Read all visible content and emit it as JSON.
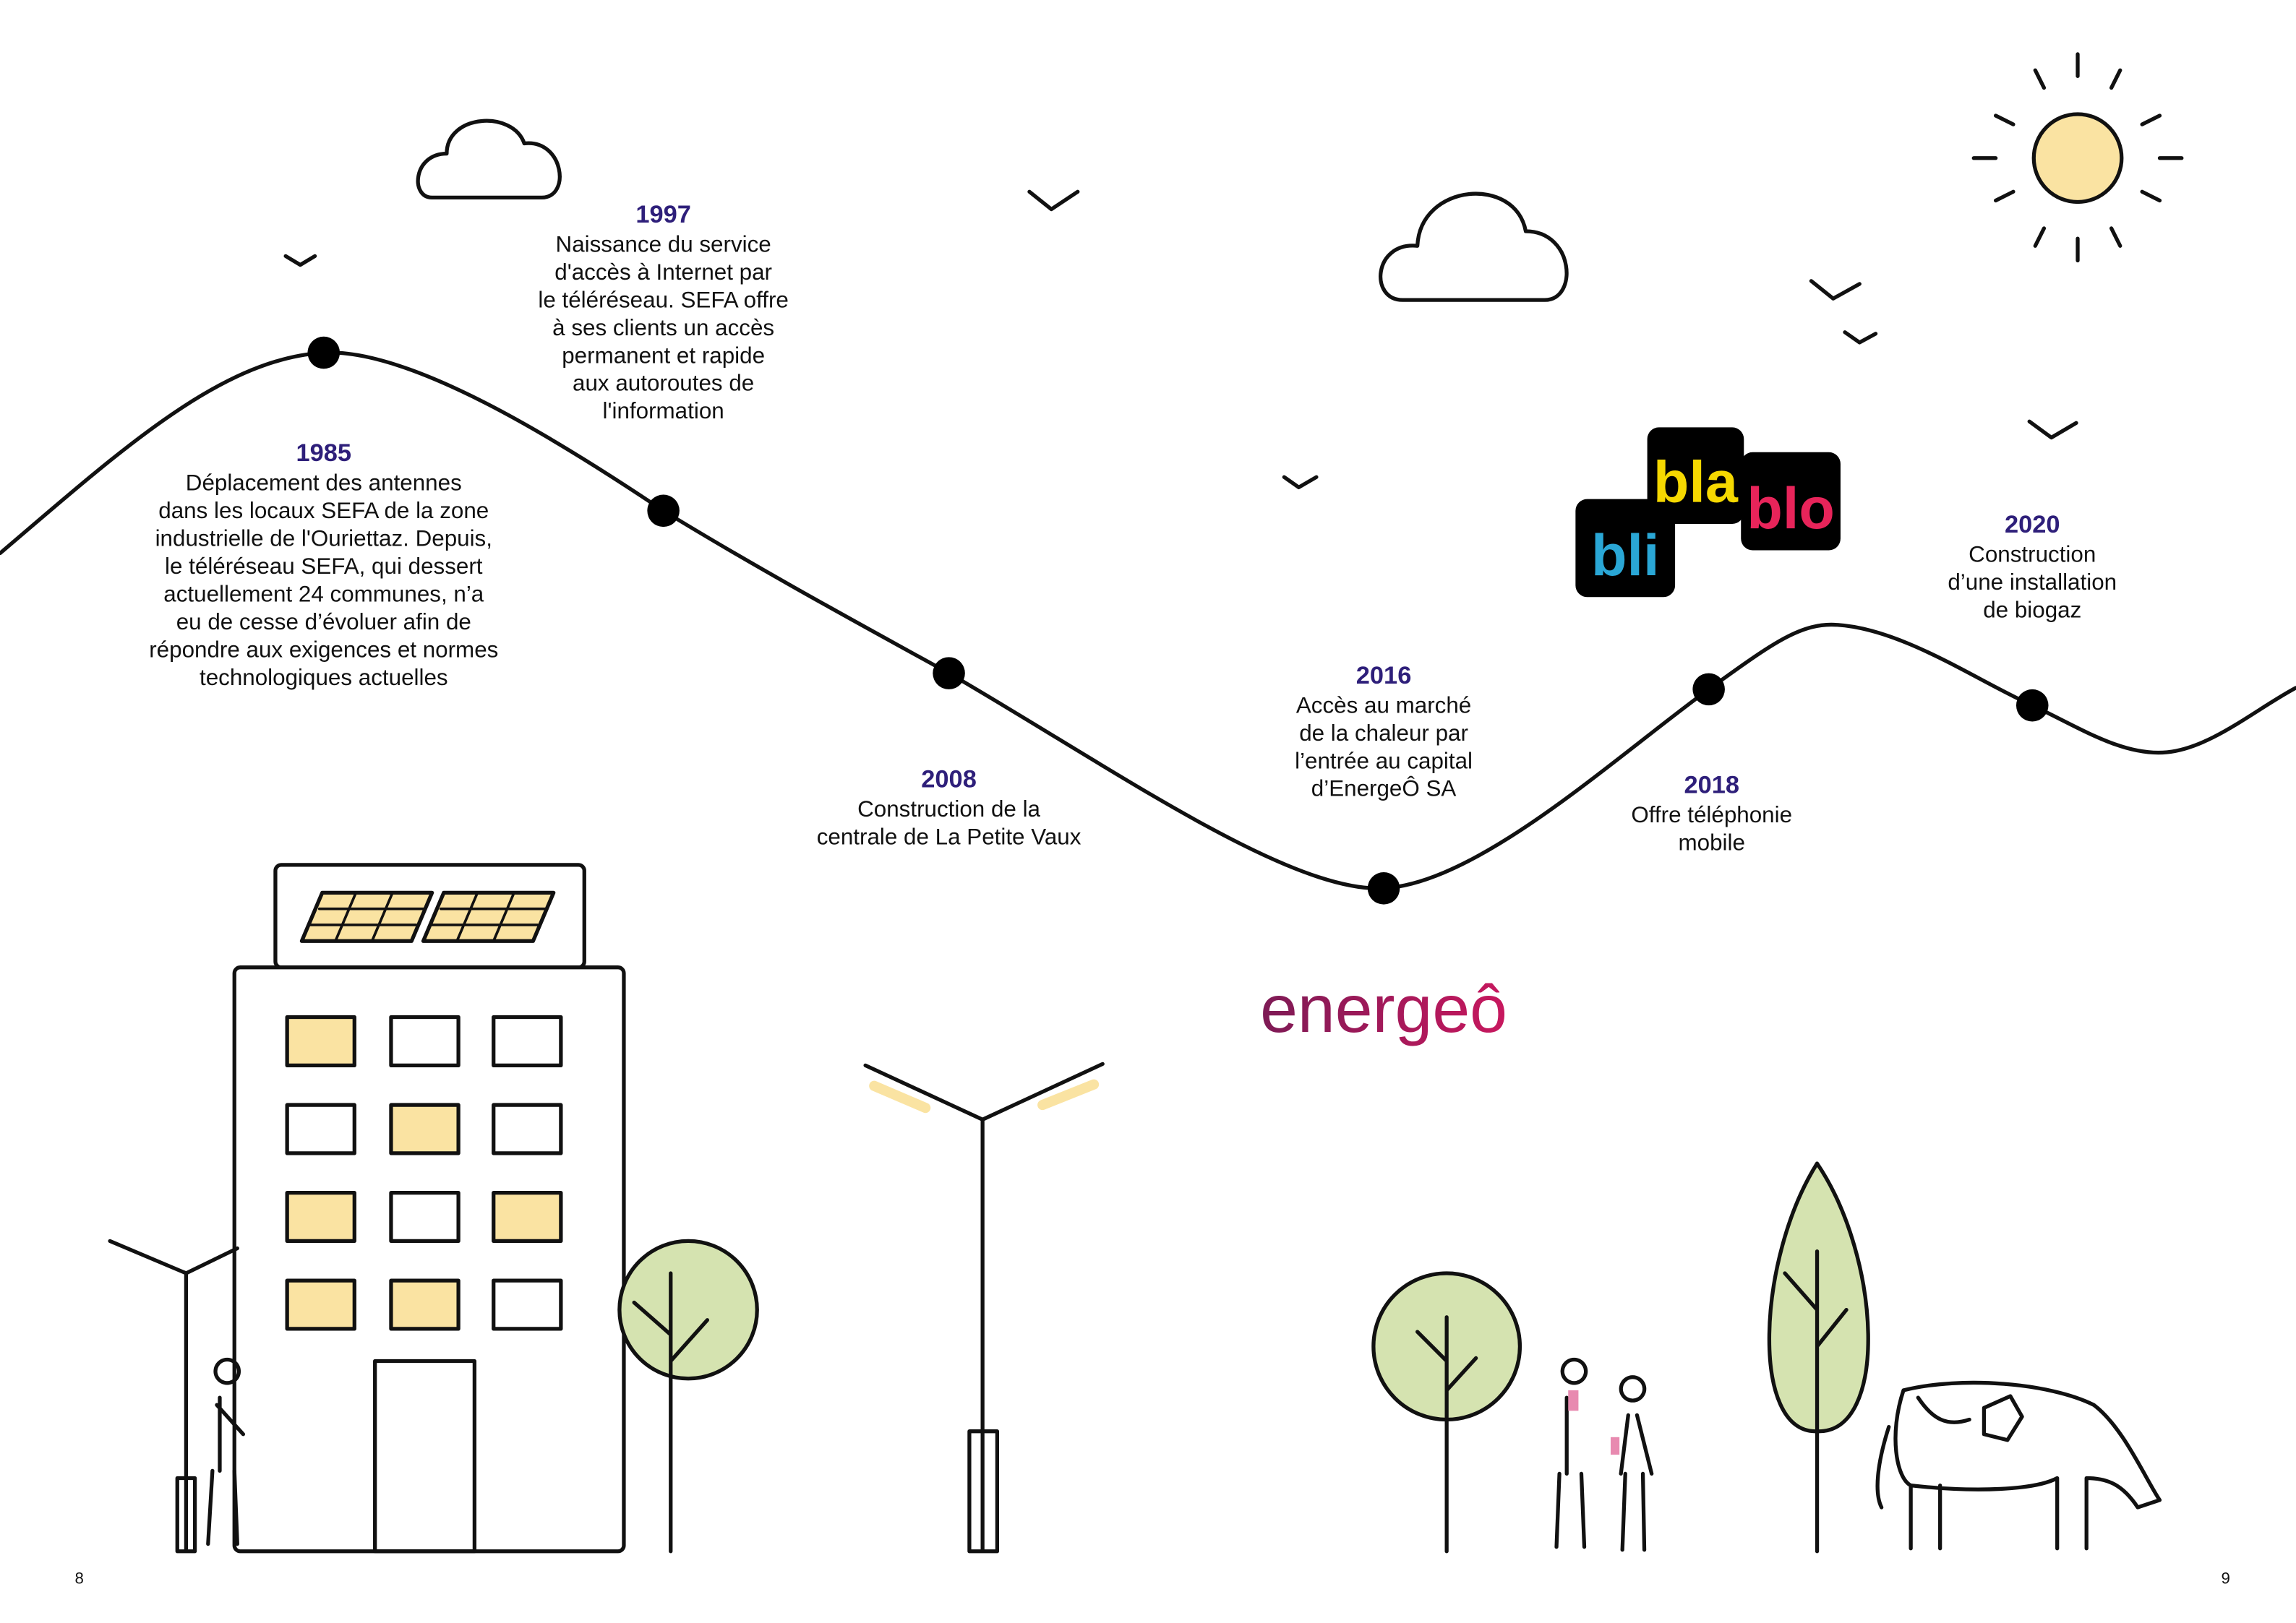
{
  "timeline": [
    {
      "year": "1985",
      "lines": [
        "Déplacement des antennes",
        "dans les locaux SEFA de la zone",
        "industrielle de l'Ouriettaz. Depuis,",
        "le téléréseau SEFA, qui dessert",
        "actuellement 24 communes, n’a",
        "eu de cesse d’évoluer afin de",
        "répondre aux exigences et normes",
        "technologiques actuelles"
      ]
    },
    {
      "year": "1997",
      "lines": [
        "Naissance du service",
        "d'accès à Internet par",
        "le téléréseau. SEFA offre",
        "à ses clients un accès",
        "permanent et rapide",
        "aux autoroutes de",
        "l'information"
      ]
    },
    {
      "year": "2008",
      "lines": [
        "Construction de la",
        "centrale de La Petite Vaux"
      ]
    },
    {
      "year": "2016",
      "lines": [
        "Accès au marché",
        "de la chaleur par",
        "l’entrée au capital",
        "d’EnergeÔ SA"
      ]
    },
    {
      "year": "2018",
      "lines": [
        "Offre téléphonie",
        "mobile"
      ]
    },
    {
      "year": "2020",
      "lines": [
        "Construction",
        "d’une installation",
        "de biogaz"
      ]
    }
  ],
  "logos": {
    "bli": "bli",
    "bla": "bla",
    "blo": "blo",
    "energeo": "energeô"
  },
  "page_numbers": [
    "8",
    "9"
  ]
}
